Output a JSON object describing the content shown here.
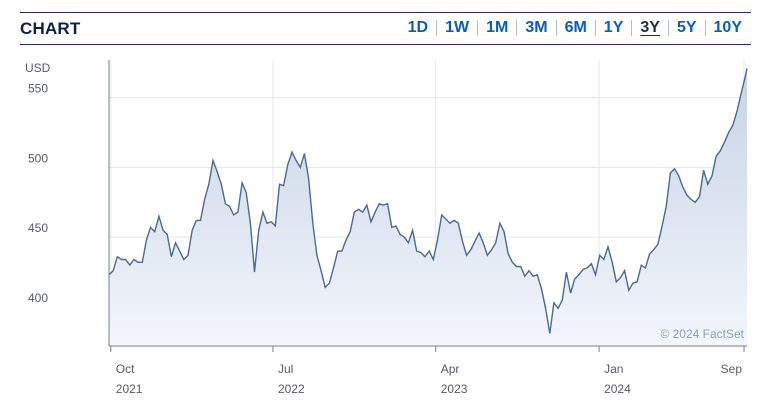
{
  "header": {
    "title": "CHART",
    "ranges": [
      "1D",
      "1W",
      "1M",
      "3M",
      "6M",
      "1Y",
      "3Y",
      "5Y",
      "10Y"
    ],
    "active_range": "3Y"
  },
  "credit": "© 2024 FactSet",
  "colors": {
    "line": "#4a6a93",
    "fill_top": "#c7d3e6",
    "fill_bottom": "#f3f6fb",
    "accent": "#0b5db8"
  },
  "chart_data": {
    "type": "area",
    "title": "",
    "ylabel": "USD",
    "xlabel": "",
    "ylim": [
      372,
      577
    ],
    "y_ticks": [
      400,
      450,
      500,
      550
    ],
    "x_tick_labels": [
      {
        "label": "Oct",
        "sub": "2021",
        "date": "2021-10-01"
      },
      {
        "label": "Jul",
        "sub": "2022",
        "date": "2022-07-01"
      },
      {
        "label": "Apr",
        "sub": "2023",
        "date": "2023-04-01"
      },
      {
        "label": "Jan",
        "sub": "2024",
        "date": "2024-01-01"
      },
      {
        "label": "Sep",
        "sub": "",
        "date": "2024-09-01"
      }
    ],
    "grid": true,
    "series": [
      {
        "values": [
          [
            "2021-09-28",
            423
          ],
          [
            "2021-10-05",
            426
          ],
          [
            "2021-10-12",
            436
          ],
          [
            "2021-10-19",
            434
          ],
          [
            "2021-10-26",
            434
          ],
          [
            "2021-11-02",
            430
          ],
          [
            "2021-11-09",
            434
          ],
          [
            "2021-11-16",
            432
          ],
          [
            "2021-11-23",
            432
          ],
          [
            "2021-11-30",
            448
          ],
          [
            "2021-12-07",
            457
          ],
          [
            "2021-12-14",
            454
          ],
          [
            "2021-12-21",
            465
          ],
          [
            "2021-12-28",
            455
          ],
          [
            "2022-01-04",
            452
          ],
          [
            "2022-01-11",
            436
          ],
          [
            "2022-01-18",
            446
          ],
          [
            "2022-01-25",
            440
          ],
          [
            "2022-02-01",
            434
          ],
          [
            "2022-02-08",
            437
          ],
          [
            "2022-02-15",
            455
          ],
          [
            "2022-02-22",
            462
          ],
          [
            "2022-03-01",
            462
          ],
          [
            "2022-03-08",
            477
          ],
          [
            "2022-03-15",
            488
          ],
          [
            "2022-03-22",
            505
          ],
          [
            "2022-03-29",
            497
          ],
          [
            "2022-04-05",
            488
          ],
          [
            "2022-04-12",
            474
          ],
          [
            "2022-04-19",
            472
          ],
          [
            "2022-04-26",
            466
          ],
          [
            "2022-05-03",
            468
          ],
          [
            "2022-05-10",
            489
          ],
          [
            "2022-05-17",
            482
          ],
          [
            "2022-05-24",
            460
          ],
          [
            "2022-05-31",
            425
          ],
          [
            "2022-06-07",
            455
          ],
          [
            "2022-06-14",
            468
          ],
          [
            "2022-06-21",
            460
          ],
          [
            "2022-06-28",
            461
          ],
          [
            "2022-07-05",
            458
          ],
          [
            "2022-07-12",
            488
          ],
          [
            "2022-07-19",
            487
          ],
          [
            "2022-07-26",
            502
          ],
          [
            "2022-08-02",
            511
          ],
          [
            "2022-08-09",
            505
          ],
          [
            "2022-08-16",
            500
          ],
          [
            "2022-08-23",
            510
          ],
          [
            "2022-08-30",
            492
          ],
          [
            "2022-09-06",
            460
          ],
          [
            "2022-09-13",
            437
          ],
          [
            "2022-09-20",
            426
          ],
          [
            "2022-09-27",
            414
          ],
          [
            "2022-10-04",
            417
          ],
          [
            "2022-10-11",
            428
          ],
          [
            "2022-10-18",
            440
          ],
          [
            "2022-10-25",
            440
          ],
          [
            "2022-11-01",
            448
          ],
          [
            "2022-11-08",
            454
          ],
          [
            "2022-11-15",
            468
          ],
          [
            "2022-11-22",
            470
          ],
          [
            "2022-11-29",
            468
          ],
          [
            "2022-12-06",
            473
          ],
          [
            "2022-12-13",
            461
          ],
          [
            "2022-12-20",
            468
          ],
          [
            "2022-12-27",
            474
          ],
          [
            "2023-01-03",
            473
          ],
          [
            "2023-01-10",
            474
          ],
          [
            "2023-01-17",
            457
          ],
          [
            "2023-01-24",
            458
          ],
          [
            "2023-01-31",
            452
          ],
          [
            "2023-02-07",
            450
          ],
          [
            "2023-02-14",
            446
          ],
          [
            "2023-02-21",
            455
          ],
          [
            "2023-02-28",
            440
          ],
          [
            "2023-03-07",
            439
          ],
          [
            "2023-03-14",
            436
          ],
          [
            "2023-03-21",
            440
          ],
          [
            "2023-03-28",
            434
          ],
          [
            "2023-04-04",
            448
          ],
          [
            "2023-04-11",
            466
          ],
          [
            "2023-04-18",
            463
          ],
          [
            "2023-04-25",
            460
          ],
          [
            "2023-05-02",
            462
          ],
          [
            "2023-05-09",
            460
          ],
          [
            "2023-05-16",
            447
          ],
          [
            "2023-05-23",
            437
          ],
          [
            "2023-05-30",
            441
          ],
          [
            "2023-06-06",
            447
          ],
          [
            "2023-06-13",
            453
          ],
          [
            "2023-06-20",
            446
          ],
          [
            "2023-06-27",
            437
          ],
          [
            "2023-07-04",
            441
          ],
          [
            "2023-07-11",
            446
          ],
          [
            "2023-07-18",
            460
          ],
          [
            "2023-07-25",
            454
          ],
          [
            "2023-08-01",
            438
          ],
          [
            "2023-08-08",
            432
          ],
          [
            "2023-08-15",
            429
          ],
          [
            "2023-08-22",
            429
          ],
          [
            "2023-08-29",
            422
          ],
          [
            "2023-09-05",
            426
          ],
          [
            "2023-09-12",
            422
          ],
          [
            "2023-09-19",
            423
          ],
          [
            "2023-09-26",
            413
          ],
          [
            "2023-10-03",
            399
          ],
          [
            "2023-10-10",
            381
          ],
          [
            "2023-10-17",
            403
          ],
          [
            "2023-10-24",
            399
          ],
          [
            "2023-10-31",
            405
          ],
          [
            "2023-11-07",
            425
          ],
          [
            "2023-11-14",
            410
          ],
          [
            "2023-11-21",
            420
          ],
          [
            "2023-11-28",
            423
          ],
          [
            "2023-12-05",
            427
          ],
          [
            "2023-12-12",
            428
          ],
          [
            "2023-12-19",
            431
          ],
          [
            "2023-12-26",
            423
          ],
          [
            "2024-01-02",
            437
          ],
          [
            "2024-01-09",
            434
          ],
          [
            "2024-01-16",
            443
          ],
          [
            "2024-01-23",
            432
          ],
          [
            "2024-01-30",
            418
          ],
          [
            "2024-02-06",
            421
          ],
          [
            "2024-02-13",
            426
          ],
          [
            "2024-02-20",
            412
          ],
          [
            "2024-02-27",
            417
          ],
          [
            "2024-03-05",
            418
          ],
          [
            "2024-03-12",
            430
          ],
          [
            "2024-03-19",
            428
          ],
          [
            "2024-03-26",
            438
          ],
          [
            "2024-04-02",
            441
          ],
          [
            "2024-04-09",
            445
          ],
          [
            "2024-04-16",
            458
          ],
          [
            "2024-04-23",
            472
          ],
          [
            "2024-04-30",
            496
          ],
          [
            "2024-05-07",
            499
          ],
          [
            "2024-05-14",
            494
          ],
          [
            "2024-05-21",
            486
          ],
          [
            "2024-05-28",
            480
          ],
          [
            "2024-06-04",
            477
          ],
          [
            "2024-06-11",
            475
          ],
          [
            "2024-06-18",
            479
          ],
          [
            "2024-06-25",
            498
          ],
          [
            "2024-07-02",
            488
          ],
          [
            "2024-07-09",
            494
          ],
          [
            "2024-07-16",
            508
          ],
          [
            "2024-07-23",
            512
          ],
          [
            "2024-07-30",
            518
          ],
          [
            "2024-08-06",
            525
          ],
          [
            "2024-08-13",
            530
          ],
          [
            "2024-08-20",
            540
          ],
          [
            "2024-08-27",
            553
          ],
          [
            "2024-09-03",
            565
          ],
          [
            "2024-09-06",
            571
          ]
        ]
      }
    ]
  }
}
